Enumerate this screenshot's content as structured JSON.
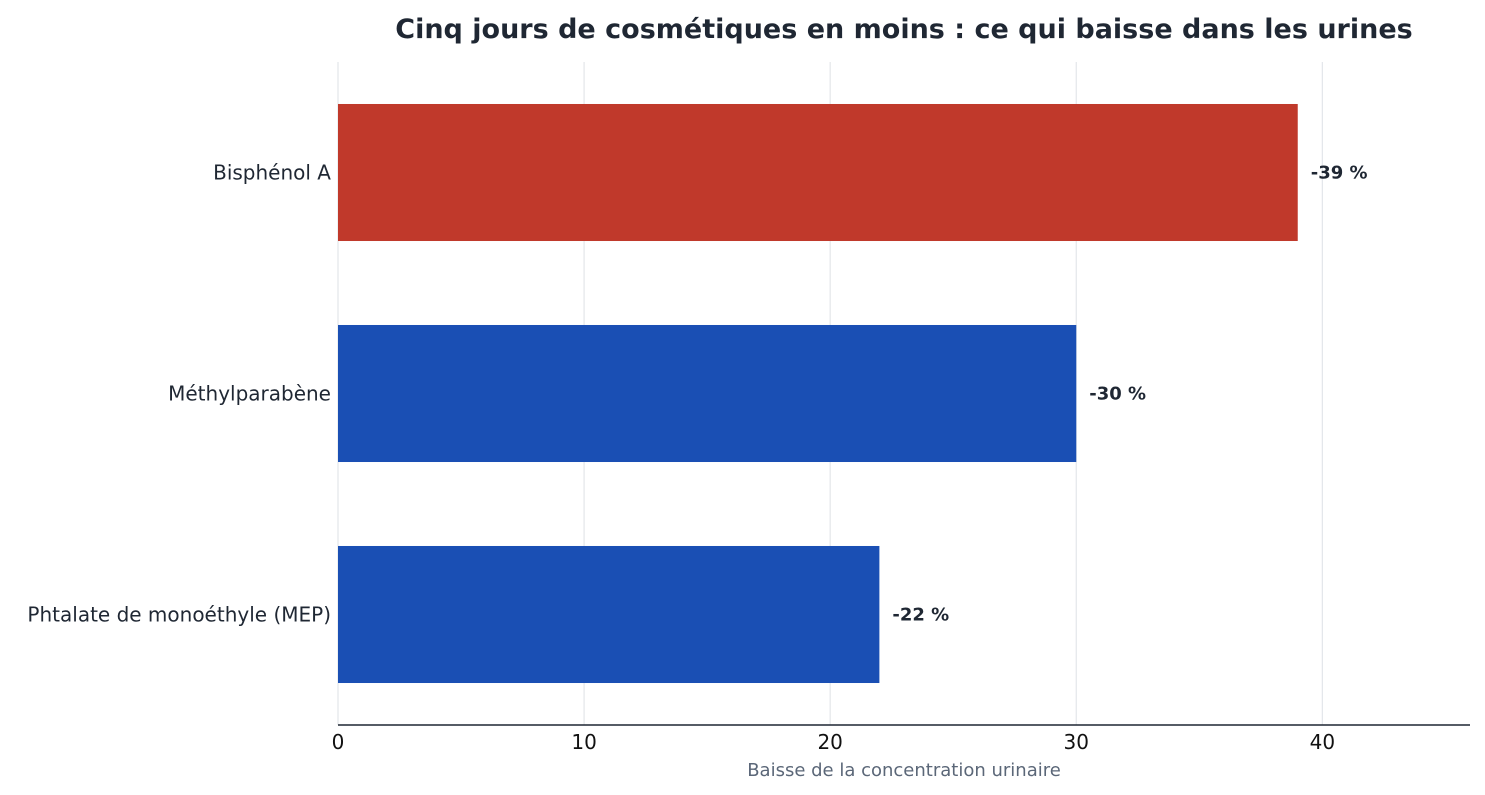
{
  "chart_data": {
    "type": "bar",
    "orientation": "horizontal",
    "title": "Cinq jours de cosmétiques en moins : ce qui baisse dans les urines",
    "xlabel": "Baisse de la concentration urinaire",
    "ylabel": "",
    "xlim": [
      0,
      46
    ],
    "xticks": [
      0,
      10,
      20,
      30,
      40
    ],
    "grid": "vertical",
    "categories": [
      "Bisphénol A",
      "Méthylparabène",
      "Phtalate de monoéthyle (MEP)"
    ],
    "values": [
      39,
      30,
      22
    ],
    "value_labels": [
      "-39 %",
      "-30 %",
      "-22 %"
    ],
    "bar_colors": [
      "#c0392b",
      "#1a4fb4",
      "#1a4fb4"
    ],
    "colors": {
      "highlight": "#c0392b",
      "default": "#1a4fb4",
      "text": "#1f2733",
      "axis_title": "#5b6778",
      "grid": "#e3e6ea"
    }
  }
}
